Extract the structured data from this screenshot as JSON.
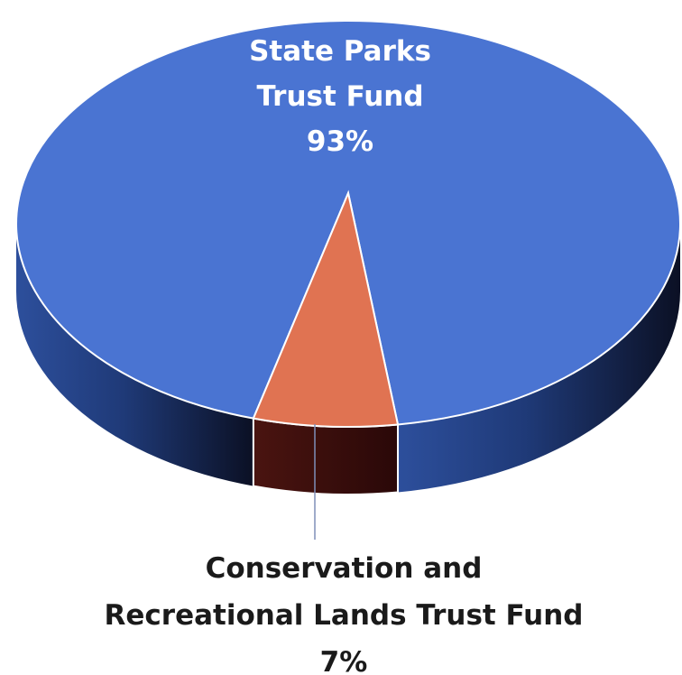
{
  "chart_data": {
    "type": "pie",
    "title": "",
    "slices": [
      {
        "label_lines": [
          "State Parks",
          "Trust Fund"
        ],
        "percent_label": "93%",
        "value": 93,
        "color": "#4a74d2"
      },
      {
        "label_lines": [
          "Conservation and",
          "Recreational Lands Trust Fund"
        ],
        "percent_label": "7%",
        "value": 7,
        "color": "#e07352"
      }
    ],
    "style": "3d",
    "legend": "none"
  }
}
